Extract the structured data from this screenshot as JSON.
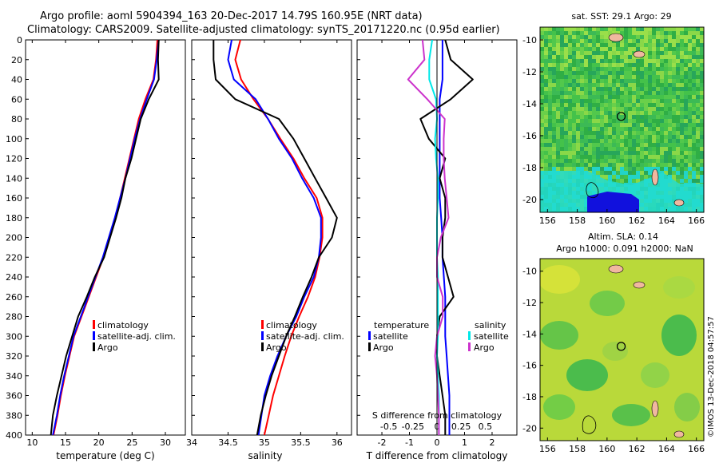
{
  "header": {
    "title_line1": "Argo profile: aoml 5904394_163 20-Dec-2017 14.79S 160.95E (NRT data)",
    "title_line2": "Climatology: CARS2009. Satellite-adjusted climatology: synTS_20171220.nc (0.95d earlier)"
  },
  "colors": {
    "climatology": "#ff0000",
    "satellite": "#0000ff",
    "argo": "#000000",
    "salinity_diff_satellite": "#00e8e8",
    "salinity_diff_argo": "#cc33cc",
    "land": "#f0b8a0"
  },
  "chart_data": [
    {
      "id": "temperature",
      "type": "line",
      "xlabel": "temperature (deg C)",
      "ylabel": "",
      "xlim": [
        9,
        33
      ],
      "ylim": [
        400,
        0
      ],
      "xticks": [
        "10",
        "15",
        "20",
        "25",
        "30"
      ],
      "yticks": [
        "0",
        "20",
        "40",
        "60",
        "80",
        "100",
        "120",
        "140",
        "160",
        "180",
        "200",
        "220",
        "240",
        "260",
        "280",
        "300",
        "320",
        "340",
        "360",
        "380",
        "400"
      ],
      "depth": [
        0,
        20,
        40,
        60,
        80,
        100,
        120,
        140,
        160,
        180,
        200,
        220,
        240,
        260,
        280,
        300,
        320,
        340,
        360,
        380,
        400
      ],
      "series": [
        {
          "name": "climatology",
          "values": [
            28.8,
            28.6,
            28.2,
            27.0,
            26.0,
            25.3,
            24.6,
            23.9,
            23.2,
            22.5,
            21.6,
            20.7,
            19.6,
            18.5,
            17.4,
            16.3,
            15.6,
            14.9,
            14.3,
            13.8,
            13.2
          ]
        },
        {
          "name": "satellite-adj. clim.",
          "values": [
            29.0,
            28.7,
            28.3,
            27.2,
            26.2,
            25.4,
            24.7,
            24.0,
            23.2,
            22.4,
            21.5,
            20.6,
            19.5,
            18.4,
            17.3,
            16.2,
            15.5,
            14.8,
            14.2,
            13.7,
            13.1
          ]
        },
        {
          "name": "Argo",
          "values": [
            29.0,
            28.9,
            29.0,
            27.5,
            26.3,
            25.6,
            24.9,
            24.0,
            23.4,
            22.6,
            21.7,
            20.8,
            19.4,
            18.2,
            16.9,
            16.0,
            15.1,
            14.4,
            13.7,
            13.1,
            12.8
          ]
        }
      ],
      "legend": [
        "climatology",
        "satellite-adj. clim.",
        "Argo"
      ]
    },
    {
      "id": "salinity",
      "type": "line",
      "xlabel": "salinity",
      "xlim": [
        34,
        36.2
      ],
      "ylim": [
        400,
        0
      ],
      "xticks": [
        "34",
        "34.5",
        "35",
        "35.5",
        "36"
      ],
      "depth": [
        0,
        20,
        40,
        60,
        80,
        100,
        120,
        140,
        160,
        180,
        200,
        220,
        240,
        260,
        280,
        300,
        320,
        340,
        360,
        380,
        400
      ],
      "series": [
        {
          "name": "climatology",
          "values": [
            34.67,
            34.6,
            34.68,
            34.85,
            35.05,
            35.22,
            35.4,
            35.55,
            35.72,
            35.8,
            35.8,
            35.76,
            35.7,
            35.6,
            35.48,
            35.37,
            35.28,
            35.2,
            35.12,
            35.06,
            35.0
          ]
        },
        {
          "name": "satellite-adj. clim.",
          "values": [
            34.55,
            34.5,
            34.58,
            34.88,
            35.05,
            35.2,
            35.38,
            35.52,
            35.68,
            35.78,
            35.78,
            35.75,
            35.68,
            35.55,
            35.44,
            35.3,
            35.18,
            35.08,
            35.0,
            34.96,
            34.92
          ]
        },
        {
          "name": "Argo",
          "values": [
            34.3,
            34.3,
            34.33,
            34.6,
            35.2,
            35.4,
            35.55,
            35.7,
            35.85,
            36.0,
            35.93,
            35.75,
            35.65,
            35.53,
            35.42,
            35.3,
            35.2,
            35.1,
            35.02,
            34.95,
            34.9
          ]
        }
      ],
      "legend": [
        "climatology",
        "satellite-adj. clim.",
        "Argo"
      ]
    },
    {
      "id": "differences",
      "type": "line",
      "xlabel": "T difference from climatology",
      "xlabel_top": "S difference from climatology",
      "xlim": [
        -2.9,
        2.9
      ],
      "ylim": [
        400,
        0
      ],
      "xticks": [
        "-2",
        "-1",
        "0",
        "1",
        "2"
      ],
      "xticks_s": [
        "-0.5",
        "-0.25",
        "0",
        "0.25",
        "0.5"
      ],
      "depth": [
        0,
        20,
        40,
        60,
        80,
        100,
        120,
        140,
        160,
        180,
        200,
        220,
        240,
        260,
        280,
        300,
        320,
        340,
        360,
        380,
        400
      ],
      "series": [
        {
          "name": "temperature satellite",
          "group": "temperature",
          "values": [
            0.2,
            0.2,
            0.2,
            0.1,
            0.1,
            0.1,
            0.1,
            0.1,
            0.1,
            0.15,
            0.2,
            0.2,
            0.25,
            0.3,
            0.3,
            0.3,
            0.35,
            0.4,
            0.45,
            0.45,
            0.45
          ]
        },
        {
          "name": "temperature Argo",
          "group": "temperature",
          "values": [
            0.3,
            0.5,
            1.3,
            0.5,
            -0.6,
            -0.3,
            0.3,
            0.1,
            0.3,
            0.3,
            0.2,
            0.2,
            0.4,
            0.6,
            0.1,
            0.0,
            0.0,
            0.1,
            0.2,
            0.3,
            0.3
          ]
        },
        {
          "name": "salinity satellite",
          "group": "salinity",
          "values": [
            -0.05,
            -0.08,
            -0.08,
            -0.01,
            0.0,
            -0.02,
            -0.01,
            0.01,
            0.01,
            0.0,
            0.0,
            0.0,
            0.01,
            0.01,
            0.01,
            0.01,
            0.0,
            0.01,
            0.02,
            0.02,
            0.02
          ]
        },
        {
          "name": "salinity Argo",
          "group": "salinity",
          "values": [
            -0.15,
            -0.13,
            -0.3,
            -0.1,
            0.08,
            0.07,
            0.07,
            0.08,
            0.1,
            0.12,
            0.04,
            0.0,
            0.0,
            0.06,
            0.06,
            0.0,
            -0.02,
            0.0,
            0.01,
            0.02,
            0.02
          ]
        }
      ],
      "legend_groups": [
        {
          "heading": "temperature",
          "items": [
            "satellite",
            "Argo"
          ]
        },
        {
          "heading": "salinity",
          "items": [
            "satellite",
            "Argo"
          ]
        }
      ]
    }
  ],
  "maps": [
    {
      "id": "sst",
      "title": "sat. SST: 29.1 Argo: 29",
      "subtitle": "",
      "lat_ticks": [
        "-10",
        "-12",
        "-14",
        "-16",
        "-18",
        "-20"
      ],
      "lon_ticks": [
        "156",
        "158",
        "160",
        "162",
        "164",
        "166"
      ],
      "marker": {
        "lon": 160.95,
        "lat": -14.79
      }
    },
    {
      "id": "sla",
      "title": "Altim. SLA: 0.14",
      "subtitle": "Argo h1000: 0.091 h2000: NaN",
      "lat_ticks": [
        "-10",
        "-12",
        "-14",
        "-16",
        "-18",
        "-20"
      ],
      "lon_ticks": [
        "156",
        "158",
        "160",
        "162",
        "164",
        "166"
      ],
      "marker": {
        "lon": 160.95,
        "lat": -14.79
      }
    }
  ],
  "credit": "©IMOS 13-Dec-2018 04:57:57"
}
